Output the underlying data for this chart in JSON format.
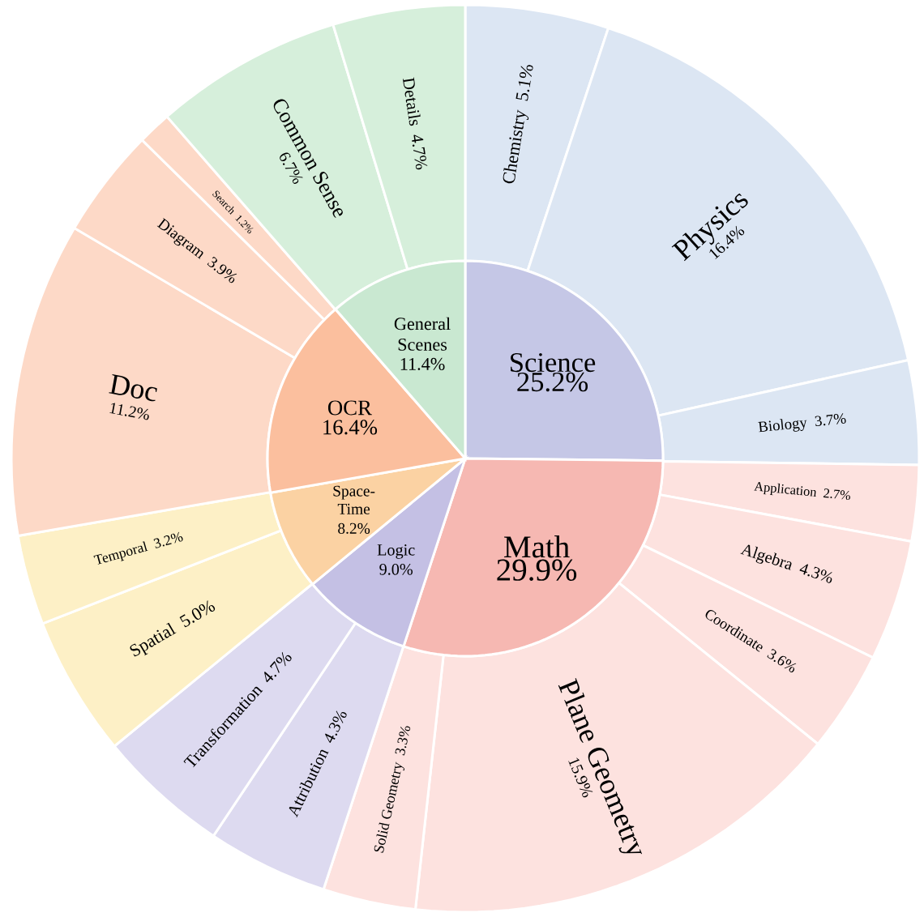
{
  "chart_data": [
    {
      "type": "pie",
      "categories": [
        "Science",
        "Math",
        "Logic",
        "Space-Time",
        "OCR",
        "General Scenes"
      ],
      "values": [
        25.2,
        29.9,
        9.0,
        8.2,
        16.4,
        11.4
      ],
      "value_labels": [
        "25.2%",
        "29.9%",
        "9.0%",
        "8.2%",
        "16.4%",
        "11.4%"
      ],
      "colors": [
        "#c5c7e6",
        "#f6b8b2",
        "#c4c0e4",
        "#fbd2a3",
        "#fbbf9e",
        "#c9e8d1"
      ]
    },
    {
      "type": "donut",
      "categories": [
        "Chemistry",
        "Physics",
        "Biology",
        "Application",
        "Algebra",
        "Coordinate",
        "Plane Geometry",
        "Solid Geometry",
        "Attribution",
        "Transformation",
        "Spatial",
        "Temporal",
        "Doc",
        "Diagram",
        "Search",
        "Common Sense",
        "Details"
      ],
      "values": [
        5.1,
        16.4,
        3.7,
        2.7,
        4.3,
        3.6,
        15.9,
        3.3,
        4.3,
        4.7,
        5.0,
        3.2,
        11.2,
        3.9,
        1.2,
        6.7,
        4.7
      ],
      "value_labels": [
        "5.1%",
        "16.4%",
        "3.7%",
        "2.7%",
        "4.3%",
        "3.6%",
        "15.9%",
        "3.3%",
        "4.3%",
        "4.7%",
        "5.0%",
        "3.2%",
        "11.2%",
        "3.9%",
        "1.2%",
        "6.7%",
        "4.7%"
      ],
      "colors": [
        "#dce6f3",
        "#dce6f3",
        "#dce6f3",
        "#fde2df",
        "#fde2df",
        "#fde2df",
        "#fde2df",
        "#fde2df",
        "#dddaf0",
        "#dddaf0",
        "#fdf0c6",
        "#fdf0c6",
        "#fdd9c7",
        "#fdd9c7",
        "#fdd9c7",
        "#d6efdb",
        "#d6efdb"
      ]
    }
  ]
}
